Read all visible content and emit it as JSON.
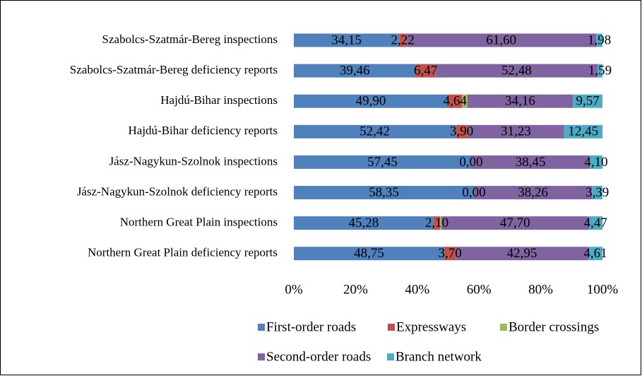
{
  "chart_data": {
    "type": "stacked_bar_horizontal",
    "categories": [
      "Szabolcs-Szatmár-Bereg inspections",
      "Szabolcs-Szatmár-Bereg deficiency reports",
      "Hajdú-Bihar inspections",
      "Hajdú-Bihar deficiency reports",
      "Jász-Nagykun-Szolnok inspections",
      "Jász-Nagykun-Szolnok deficiency reports",
      "Northern Great Plain inspections",
      "Northern Great Plain deficiency reports"
    ],
    "series": [
      {
        "name": "First-order roads",
        "color": "#4f81bd",
        "values": [
          34.15,
          39.46,
          49.9,
          52.42,
          57.45,
          58.35,
          45.28,
          48.75
        ],
        "value_labels": [
          "34,15",
          "39,46",
          "49,90",
          "52,42",
          "57,45",
          "58,35",
          "45,28",
          "48,75"
        ]
      },
      {
        "name": "Expressways",
        "color": "#c0504d",
        "values": [
          2.22,
          6.47,
          4.64,
          3.9,
          0.0,
          0.0,
          2.1,
          3.7
        ],
        "value_labels": [
          "2,22",
          "6,47",
          "4,64",
          "3,90",
          "0,00",
          "0,00",
          "2,10",
          "3,70"
        ]
      },
      {
        "name": "Border crossings",
        "color": "#9bbb59",
        "values": [
          0.05,
          0,
          1.73,
          0,
          0,
          0,
          0.45,
          0
        ]
      },
      {
        "name": "Second-order roads",
        "color": "#8064a2",
        "values": [
          61.6,
          52.48,
          34.16,
          31.23,
          38.45,
          38.26,
          47.7,
          42.95
        ],
        "value_labels": [
          "61,60",
          "52,48",
          "34,16",
          "31,23",
          "38,45",
          "38,26",
          "47,70",
          "42,95"
        ]
      },
      {
        "name": "Branch network",
        "color": "#4bacc6",
        "values": [
          1.98,
          1.59,
          9.57,
          12.45,
          4.1,
          3.39,
          4.47,
          4.61
        ],
        "value_labels": [
          "1,98",
          "1,59",
          "9,57",
          "12,45",
          "4,10",
          "3,39",
          "4,47",
          "4,61"
        ]
      }
    ],
    "xlim": [
      0,
      100
    ],
    "xticks": [
      {
        "value": 0,
        "label": "0%"
      },
      {
        "value": 20,
        "label": "20%"
      },
      {
        "value": 40,
        "label": "40%"
      },
      {
        "value": 60,
        "label": "60%"
      },
      {
        "value": 80,
        "label": "80%"
      },
      {
        "value": 100,
        "label": "100%"
      }
    ],
    "legend": "bottom"
  }
}
